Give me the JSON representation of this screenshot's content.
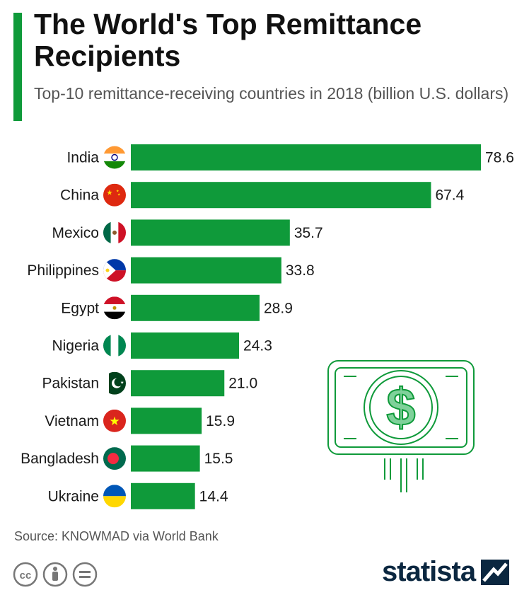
{
  "header": {
    "title": "The World's Top Remittance Recipients",
    "subtitle": "Top-10 remittance-receiving countries in 2018 (billion U.S. dollars)"
  },
  "colors": {
    "bar": "#0f9a3a",
    "accent": "#0f9a3a",
    "brand": "#0b2740"
  },
  "chart_data": {
    "type": "bar",
    "orientation": "horizontal",
    "title": "The World's Top Remittance Recipients",
    "subtitle": "Top-10 remittance-receiving countries in 2018 (billion U.S. dollars)",
    "categories": [
      "India",
      "China",
      "Mexico",
      "Philippines",
      "Egypt",
      "Nigeria",
      "Pakistan",
      "Vietnam",
      "Bangladesh",
      "Ukraine"
    ],
    "values": [
      78.6,
      67.4,
      35.7,
      33.8,
      28.9,
      24.3,
      21.0,
      15.9,
      15.5,
      14.4
    ],
    "value_labels": [
      "78.6",
      "67.4",
      "35.7",
      "33.8",
      "28.9",
      "24.3",
      "21.0",
      "15.9",
      "15.5",
      "14.4"
    ],
    "flags": [
      "india-flag",
      "china-flag",
      "mexico-flag",
      "philippines-flag",
      "egypt-flag",
      "nigeria-flag",
      "pakistan-flag",
      "vietnam-flag",
      "bangladesh-flag",
      "ukraine-flag"
    ],
    "xlim": [
      0,
      78.6
    ],
    "xlabel": "",
    "ylabel": "",
    "grid": false
  },
  "footer": {
    "source": "Source: KNOWMAD via World Bank",
    "brand": "statista",
    "license_icons": [
      "cc-icon",
      "attribution-icon",
      "no-derivatives-icon"
    ]
  }
}
